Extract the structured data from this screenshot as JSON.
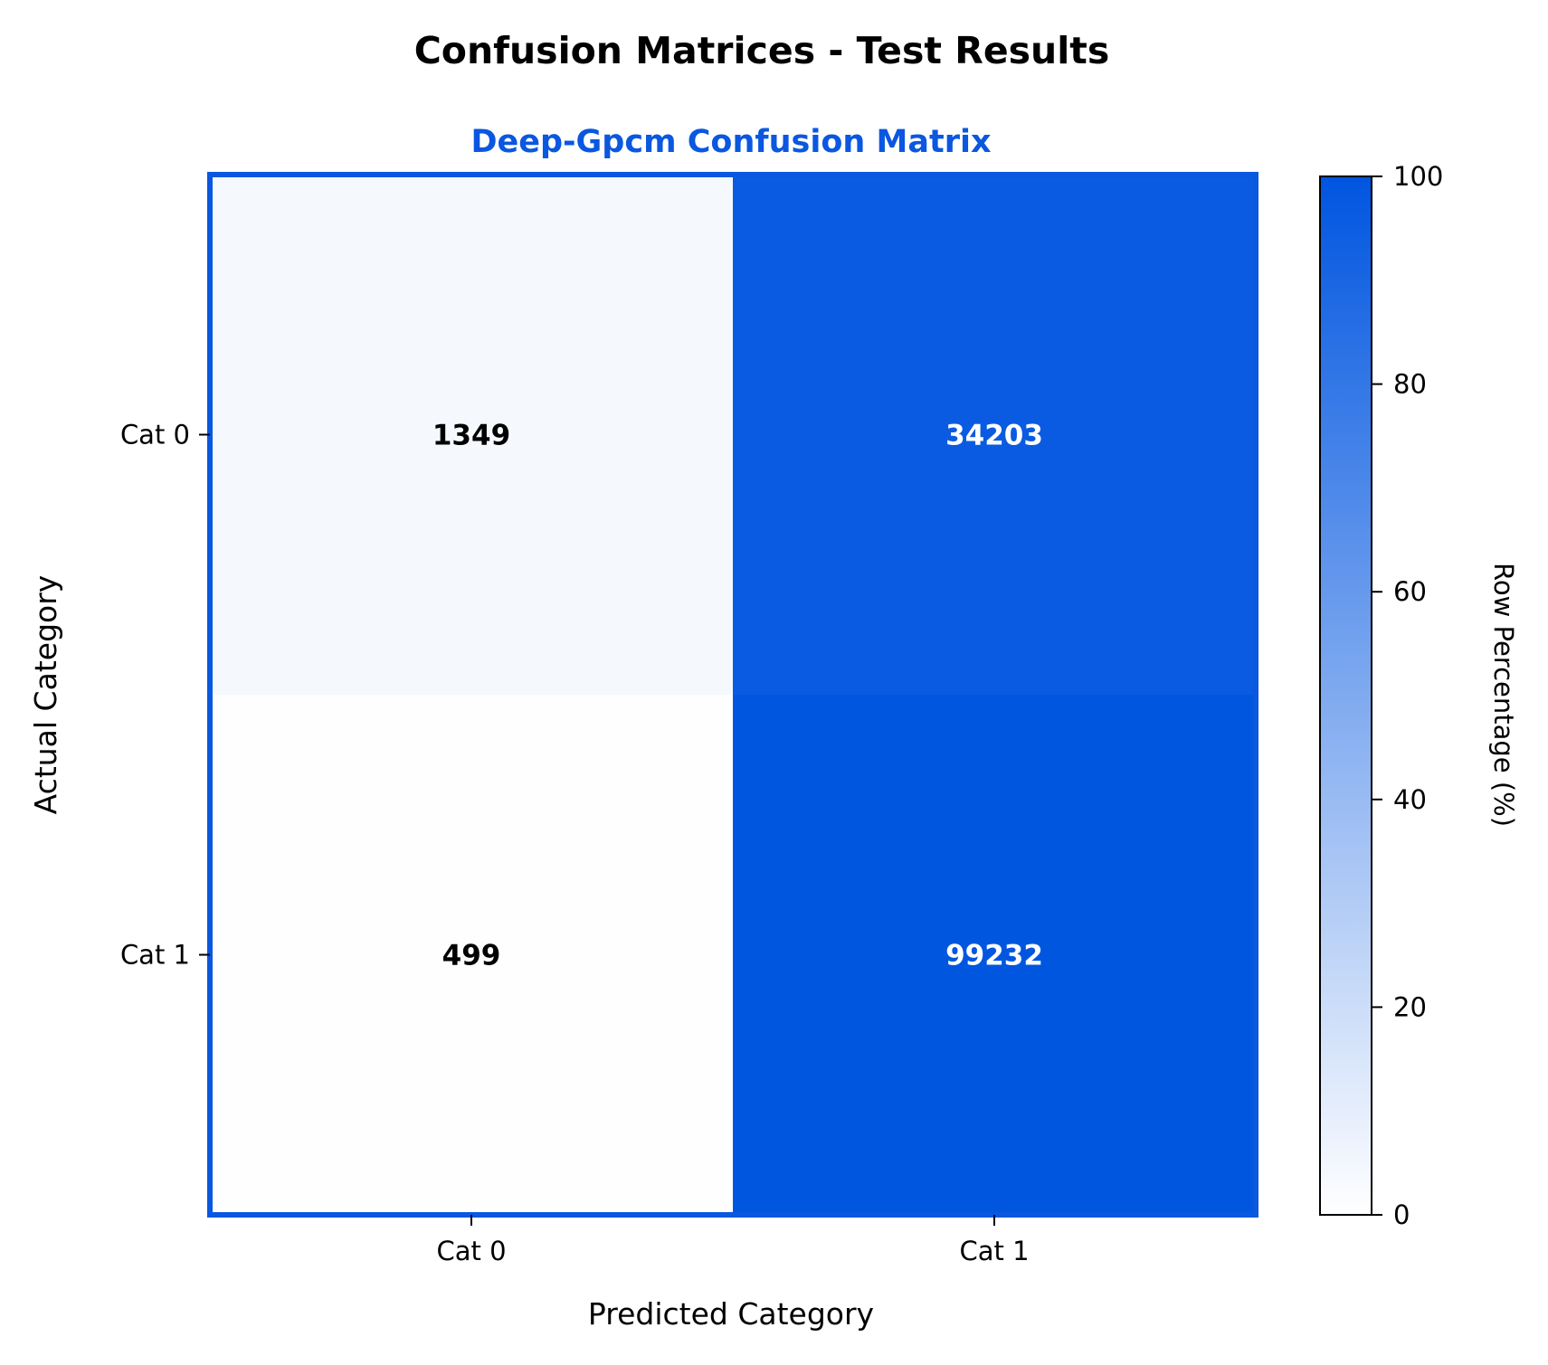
{
  "chart_data": {
    "type": "heatmap",
    "suptitle": "Confusion Matrices - Test Results",
    "title": "Deep-Gpcm Confusion Matrix",
    "xlabel": "Predicted Category",
    "ylabel": "Actual Category",
    "x_categories": [
      "Cat 0",
      "Cat 1"
    ],
    "y_categories": [
      "Cat 0",
      "Cat 1"
    ],
    "counts": [
      [
        1349,
        34203
      ],
      [
        499,
        99232
      ]
    ],
    "row_percentages": [
      [
        3.8,
        96.2
      ],
      [
        0.5,
        99.5
      ]
    ],
    "colorbar": {
      "label": "Row Percentage (%)",
      "range": [
        0,
        100
      ],
      "ticks": [
        "0",
        "20",
        "40",
        "60",
        "80",
        "100"
      ]
    },
    "colors": {
      "accent": "#0A57E0",
      "scale_low": "#FFFFFF",
      "scale_high": "#0055E0"
    }
  }
}
